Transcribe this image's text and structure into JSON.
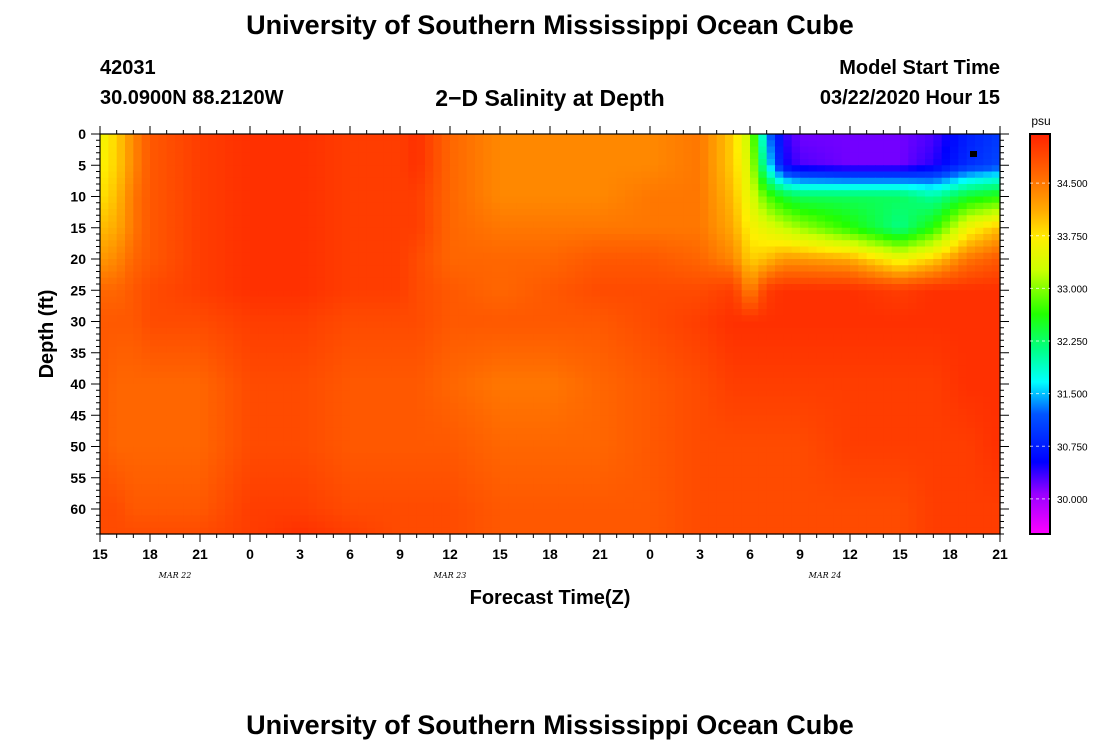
{
  "header": {
    "title": "University of Southern Mississippi Ocean Cube",
    "station_id": "42031",
    "location": "30.0900N 88.2120W",
    "plot_title": "2−D Salinity at Depth",
    "model_start_label": "Model Start Time",
    "model_start_value": "03/22/2020 Hour 15"
  },
  "footer": {
    "title": "University of Southern Mississippi Ocean Cube"
  },
  "chart_data": {
    "type": "heatmap",
    "title": "2−D Salinity at Depth",
    "xlabel": "Forecast Time(Z)",
    "ylabel": "Depth (ft)",
    "x_tick_labels": [
      "15",
      "18",
      "21",
      "0",
      "3",
      "6",
      "9",
      "12",
      "15",
      "18",
      "21",
      "0",
      "3",
      "6",
      "9",
      "12",
      "15",
      "18",
      "21"
    ],
    "date_labels": [
      {
        "label": "MAR 22",
        "tick_index": 1.5
      },
      {
        "label": "MAR 23",
        "tick_index": 7
      },
      {
        "label": "MAR 24",
        "tick_index": 14.5
      }
    ],
    "y_tick_labels": [
      "0",
      "5",
      "10",
      "15",
      "20",
      "25",
      "30",
      "35",
      "40",
      "45",
      "50",
      "55",
      "60"
    ],
    "xlim_hours": [
      0,
      54
    ],
    "ylim_ft": [
      0,
      64
    ],
    "colorbar": {
      "unit": "psu",
      "ticks": [
        "34.500",
        "33.750",
        "33.000",
        "32.250",
        "31.500",
        "30.750",
        "30.000"
      ],
      "range": [
        29.5,
        35.2
      ]
    },
    "salinity_grid": {
      "depths_ft": [
        0,
        5,
        10,
        15,
        20,
        25,
        30,
        40,
        50,
        60,
        64
      ],
      "times_h": [
        0,
        1,
        2,
        3,
        6,
        9,
        12,
        15,
        18,
        19,
        21,
        24,
        27,
        30,
        33,
        36,
        38,
        39,
        40,
        41,
        42,
        45,
        48,
        50,
        52,
        54
      ],
      "values_psu": [
        [
          33.6,
          33.9,
          34.3,
          34.6,
          34.8,
          34.9,
          34.9,
          34.8,
          34.8,
          34.9,
          34.5,
          34.3,
          34.3,
          34.3,
          34.3,
          34.4,
          33.9,
          33.2,
          31.2,
          30.3,
          30.1,
          30.1,
          30.1,
          30.2,
          30.6,
          30.8
        ],
        [
          33.7,
          33.9,
          34.3,
          34.6,
          34.8,
          34.9,
          34.9,
          34.8,
          34.8,
          34.9,
          34.5,
          34.3,
          34.3,
          34.3,
          34.3,
          34.4,
          33.9,
          33.4,
          31.6,
          30.4,
          30.2,
          30.1,
          30.1,
          30.3,
          30.7,
          30.9
        ],
        [
          33.8,
          34.0,
          34.4,
          34.6,
          34.8,
          34.9,
          34.9,
          34.8,
          34.8,
          34.8,
          34.5,
          34.3,
          34.3,
          34.3,
          34.4,
          34.4,
          34.0,
          33.5,
          32.8,
          32.4,
          32.2,
          32.2,
          32.2,
          31.9,
          32.4,
          32.6
        ],
        [
          34.0,
          34.1,
          34.4,
          34.6,
          34.8,
          34.9,
          34.9,
          34.8,
          34.8,
          34.8,
          34.5,
          34.4,
          34.4,
          34.4,
          34.4,
          34.4,
          34.1,
          33.7,
          33.5,
          33.3,
          33.1,
          32.6,
          32.0,
          32.6,
          33.6,
          34.0
        ],
        [
          34.2,
          34.3,
          34.5,
          34.6,
          34.8,
          34.9,
          34.9,
          34.8,
          34.8,
          34.7,
          34.5,
          34.5,
          34.5,
          34.6,
          34.6,
          34.5,
          34.3,
          33.9,
          34.0,
          34.2,
          34.2,
          34.1,
          33.6,
          33.9,
          34.4,
          34.6
        ],
        [
          34.5,
          34.5,
          34.6,
          34.7,
          34.8,
          34.9,
          34.9,
          34.8,
          34.8,
          34.7,
          34.6,
          34.5,
          34.6,
          34.7,
          34.7,
          34.7,
          34.8,
          34.3,
          34.8,
          34.9,
          34.9,
          34.9,
          34.8,
          34.9,
          34.9,
          34.9
        ],
        [
          34.6,
          34.6,
          34.6,
          34.7,
          34.7,
          34.8,
          34.8,
          34.7,
          34.7,
          34.7,
          34.6,
          34.6,
          34.6,
          34.6,
          34.7,
          34.8,
          34.9,
          34.9,
          34.9,
          34.9,
          34.9,
          34.9,
          34.9,
          34.9,
          34.9,
          34.9
        ],
        [
          34.6,
          34.5,
          34.5,
          34.5,
          34.5,
          34.7,
          34.7,
          34.6,
          34.6,
          34.6,
          34.5,
          34.4,
          34.4,
          34.5,
          34.6,
          34.7,
          34.8,
          34.8,
          34.8,
          34.8,
          34.8,
          34.8,
          34.8,
          34.8,
          34.9,
          34.9
        ],
        [
          34.6,
          34.5,
          34.5,
          34.5,
          34.5,
          34.7,
          34.7,
          34.6,
          34.6,
          34.6,
          34.6,
          34.5,
          34.5,
          34.5,
          34.6,
          34.7,
          34.7,
          34.7,
          34.7,
          34.7,
          34.7,
          34.8,
          34.8,
          34.8,
          34.8,
          34.9
        ],
        [
          34.7,
          34.7,
          34.6,
          34.6,
          34.6,
          34.8,
          34.8,
          34.7,
          34.7,
          34.7,
          34.7,
          34.6,
          34.6,
          34.6,
          34.6,
          34.7,
          34.7,
          34.7,
          34.7,
          34.7,
          34.7,
          34.7,
          34.7,
          34.8,
          34.8,
          34.8
        ],
        [
          34.7,
          34.7,
          34.7,
          34.7,
          34.7,
          34.8,
          34.9,
          34.8,
          34.7,
          34.7,
          34.7,
          34.6,
          34.6,
          34.6,
          34.6,
          34.7,
          34.7,
          34.7,
          34.7,
          34.7,
          34.7,
          34.7,
          34.7,
          34.8,
          34.8,
          34.8
        ]
      ]
    }
  }
}
